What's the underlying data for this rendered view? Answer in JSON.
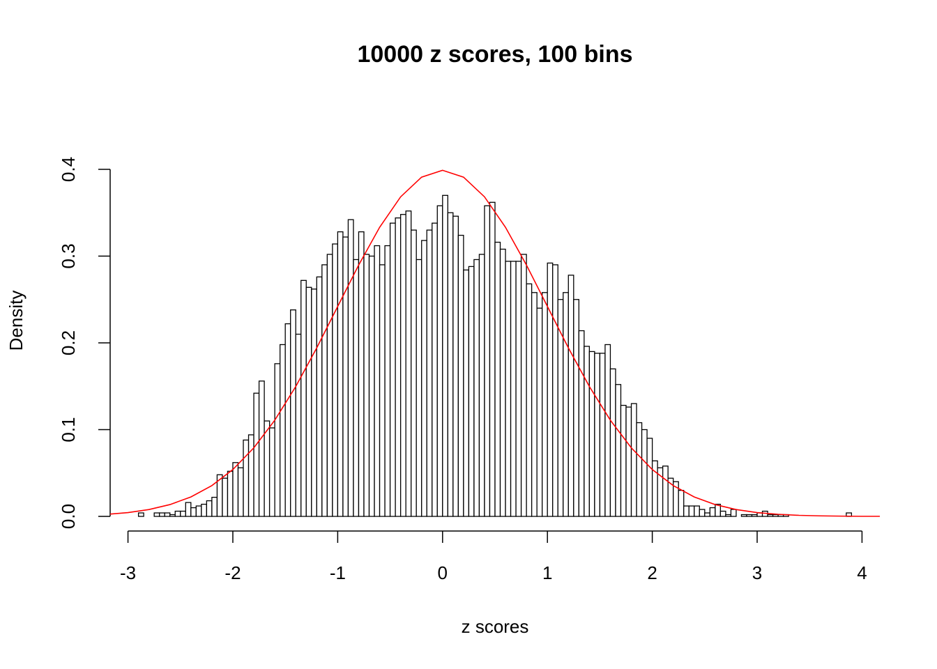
{
  "chart_data": {
    "type": "histogram",
    "title": "10000 z scores, 100 bins",
    "xlabel": "z scores",
    "ylabel": "Density",
    "bins": [
      -2.9,
      -2.85,
      -2.8,
      -2.75,
      -2.7,
      -2.65,
      -2.6,
      -2.55,
      -2.5,
      -2.45,
      -2.4,
      -2.35,
      -2.3,
      -2.25,
      -2.2,
      -2.15,
      -2.1,
      -2.05,
      -2.0,
      -1.95,
      -1.9,
      -1.85,
      -1.8,
      -1.75,
      -1.7,
      -1.65,
      -1.6,
      -1.55,
      -1.5,
      -1.45,
      -1.4,
      -1.35,
      -1.3,
      -1.25,
      -1.2,
      -1.15,
      -1.1,
      -1.05,
      -1.0,
      -0.95,
      -0.9,
      -0.85,
      -0.8,
      -0.75,
      -0.7,
      -0.65,
      -0.6,
      -0.55,
      -0.5,
      -0.45,
      -0.4,
      -0.35,
      -0.3,
      -0.25,
      -0.2,
      -0.15,
      -0.1,
      -0.05,
      0,
      0.05,
      0.1,
      0.15,
      0.2,
      0.25,
      0.3,
      0.35,
      0.4,
      0.45,
      0.5,
      0.55,
      0.6,
      0.65,
      0.7,
      0.75,
      0.8,
      0.85,
      0.9,
      0.95,
      1.0,
      1.05,
      1.1,
      1.15,
      1.2,
      1.25,
      1.3,
      1.35,
      1.4,
      1.45,
      1.5,
      1.55,
      1.6,
      1.65,
      1.7,
      1.75,
      1.8,
      1.85,
      1.9,
      1.95,
      2.0,
      2.05,
      2.1,
      2.15,
      2.2,
      2.25,
      2.3,
      2.35,
      2.4,
      2.45,
      2.5,
      2.55,
      2.6,
      2.65,
      2.7,
      2.75,
      2.8,
      2.85,
      2.9,
      2.95,
      3.0,
      3.05,
      3.1,
      3.15,
      3.2,
      3.25,
      3.3,
      3.35,
      3.4,
      3.45,
      3.5,
      3.55,
      3.6,
      3.65,
      3.7,
      3.75,
      3.8,
      3.85,
      3.9
    ],
    "values": [
      0.004,
      0,
      0,
      0.004,
      0.004,
      0.004,
      0.002,
      0.006,
      0.006,
      0.016,
      0.01,
      0.012,
      0.014,
      0.018,
      0.022,
      0.048,
      0.044,
      0.052,
      0.062,
      0.056,
      0.088,
      0.094,
      0.142,
      0.156,
      0.11,
      0.102,
      0.176,
      0.198,
      0.222,
      0.238,
      0.21,
      0.272,
      0.264,
      0.262,
      0.276,
      0.29,
      0.302,
      0.314,
      0.328,
      0.322,
      0.342,
      0.296,
      0.328,
      0.302,
      0.3,
      0.312,
      0.29,
      0.312,
      0.338,
      0.344,
      0.348,
      0.352,
      0.33,
      0.296,
      0.318,
      0.33,
      0.338,
      0.358,
      0.37,
      0.35,
      0.346,
      0.324,
      0.284,
      0.288,
      0.296,
      0.302,
      0.358,
      0.362,
      0.316,
      0.308,
      0.294,
      0.294,
      0.294,
      0.302,
      0.268,
      0.258,
      0.24,
      0.258,
      0.292,
      0.29,
      0.25,
      0.258,
      0.278,
      0.25,
      0.214,
      0.196,
      0.19,
      0.188,
      0.188,
      0.198,
      0.17,
      0.152,
      0.128,
      0.126,
      0.13,
      0.108,
      0.1,
      0.09,
      0.064,
      0.056,
      0.058,
      0.044,
      0.04,
      0.03,
      0.012,
      0.012,
      0.012,
      0.008,
      0.004,
      0.01,
      0.014,
      0.006,
      0.002,
      0.008,
      0,
      0.002,
      0.002,
      0.002,
      0.004,
      0.006,
      0.002,
      0.002,
      0.002,
      0.002,
      0,
      0,
      0,
      0,
      0,
      0,
      0,
      0,
      0,
      0,
      0,
      0.004
    ],
    "color": "#ffffff",
    "edgecolor": "#000000",
    "curve": {
      "color": "#ff0000",
      "x": [
        -3.2,
        -3.0,
        -2.8,
        -2.6,
        -2.4,
        -2.2,
        -2.0,
        -1.8,
        -1.6,
        -1.4,
        -1.2,
        -1.0,
        -0.8,
        -0.6,
        -0.4,
        -0.2,
        0,
        0.2,
        0.4,
        0.6,
        0.8,
        1.0,
        1.2,
        1.4,
        1.6,
        1.8,
        2.0,
        2.2,
        2.4,
        2.6,
        2.8,
        3.0,
        3.2,
        3.4,
        3.6,
        3.8,
        4.0,
        4.2
      ],
      "values": [
        0.0024,
        0.0044,
        0.0079,
        0.0136,
        0.0224,
        0.0355,
        0.054,
        0.079,
        0.1109,
        0.1497,
        0.1942,
        0.242,
        0.2897,
        0.3332,
        0.3683,
        0.391,
        0.3989,
        0.391,
        0.3683,
        0.3332,
        0.2897,
        0.242,
        0.1942,
        0.1497,
        0.1109,
        0.079,
        0.054,
        0.0355,
        0.0224,
        0.0136,
        0.0079,
        0.0044,
        0.0024,
        0.0012,
        0.0006,
        0.0003,
        0.0001,
        0.0001
      ]
    },
    "xlim": [
      -3.17,
      4.17
    ],
    "ylim": [
      0,
      0.4
    ],
    "xticks": [
      -3,
      -2,
      -1,
      0,
      1,
      2,
      3,
      4
    ],
    "yticks": [
      {
        "value": 0,
        "label": "0.0"
      },
      0.1,
      0.2,
      0.3,
      0.4
    ]
  }
}
